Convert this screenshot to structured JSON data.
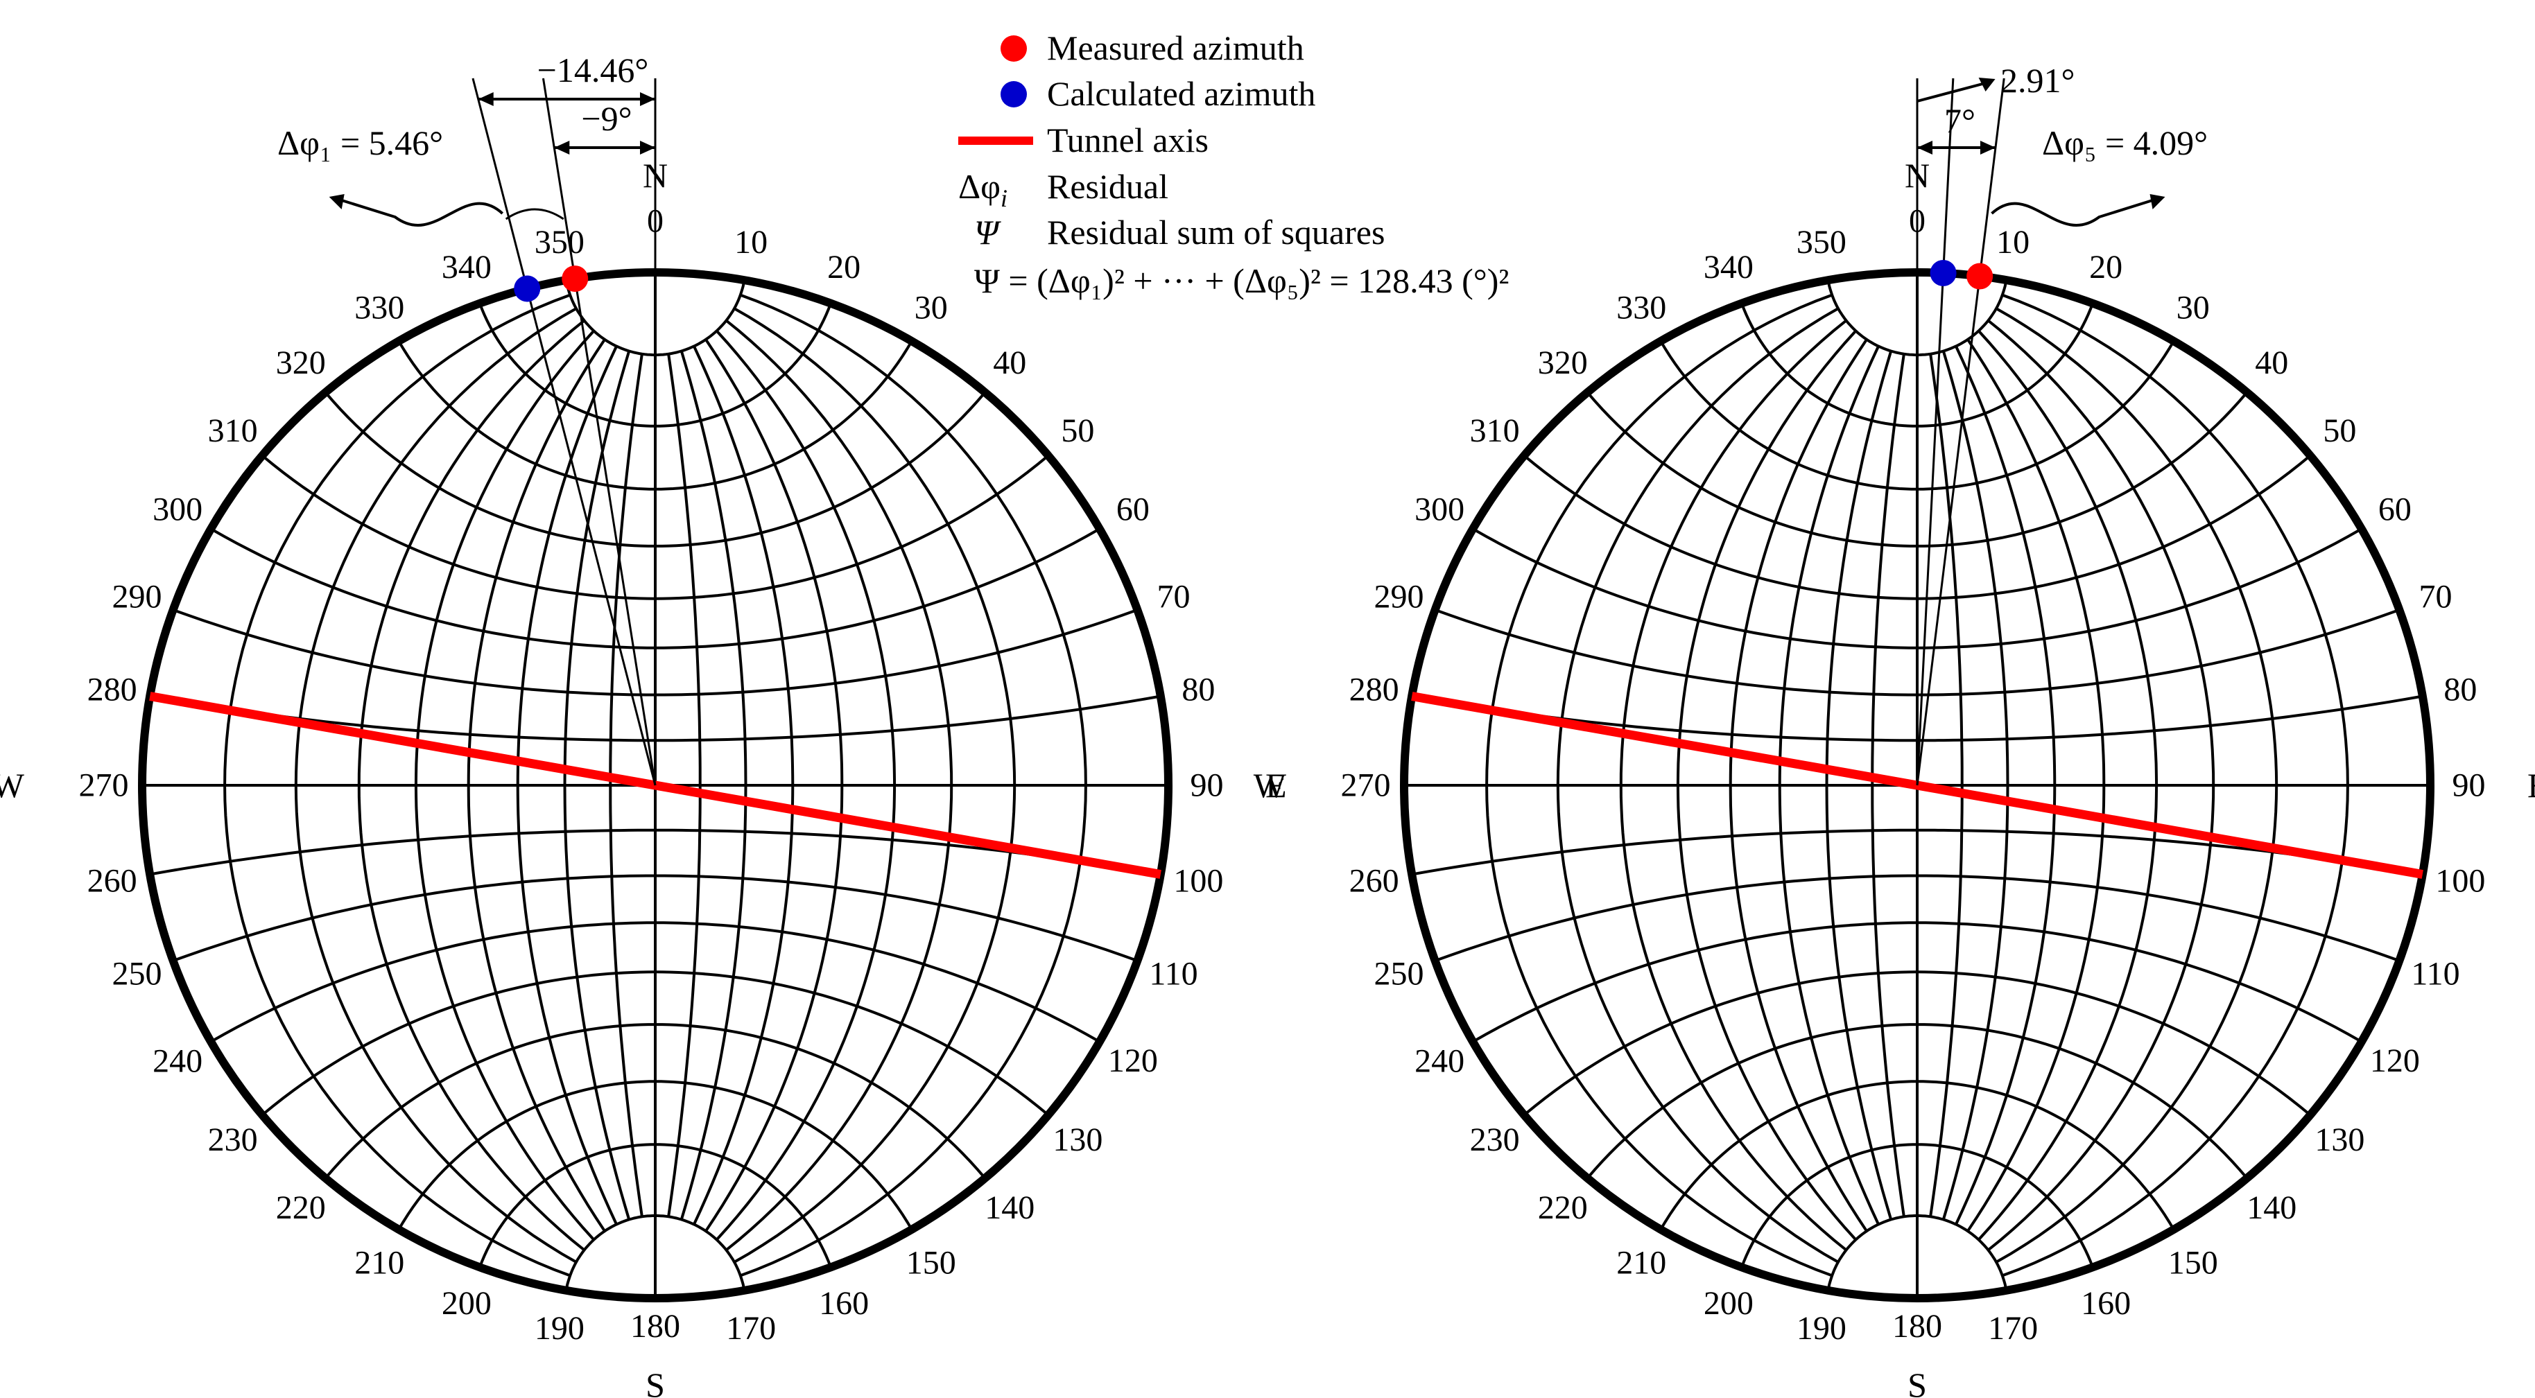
{
  "legend": {
    "measured": "Measured azimuth",
    "calculated": "Calculated azimuth",
    "tunnel": "Tunnel axis",
    "residual_sym": "Δφ",
    "residual_sub": "i",
    "residual": "Residual",
    "rss_sym": "Ψ",
    "rss": "Residual sum of squares",
    "formula": "Ψ = (Δφ₁)² + ··· + (Δφ₅)² = 128.43 (°)²"
  },
  "colors": {
    "measured": "#ff0000",
    "calculated": "#0000cc",
    "tunnel": "#ff0000"
  },
  "directions": {
    "north": "N",
    "south": "S",
    "west": "W",
    "east": "E"
  },
  "chart_data": [
    {
      "type": "stereonet",
      "tick_step_deg": 10,
      "tunnel_axis_deg": 100,
      "measured_azimuth_deg": 351,
      "calculated_azimuth_deg": 345.54,
      "annotations": {
        "residual": "Δφ₁ = 5.46°",
        "calculated_offset": "−14.46°",
        "measured_offset": "−9°"
      }
    },
    {
      "type": "stereonet",
      "tick_step_deg": 10,
      "tunnel_axis_deg": 100,
      "measured_azimuth_deg": 7,
      "calculated_azimuth_deg": 2.91,
      "annotations": {
        "residual": "Δφ₅ = 4.09°",
        "calculated_offset": "2.91°",
        "measured_offset": "7°"
      }
    }
  ]
}
